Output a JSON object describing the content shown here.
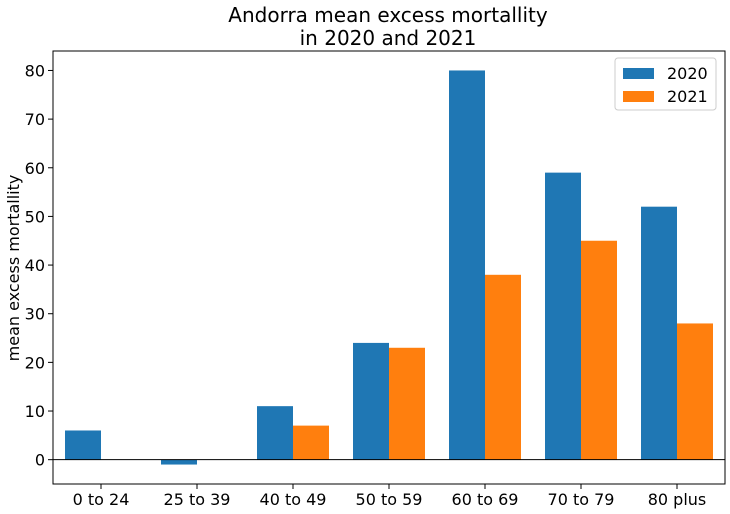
{
  "chart_data": {
    "type": "bar",
    "title_line1": "Andorra mean excess mortallity",
    "title_line2": "in 2020 and 2021",
    "xlabel": "",
    "ylabel": "mean excess mortallity",
    "categories": [
      "0 to 24",
      "25 to 39",
      "40 to 49",
      "50 to 59",
      "60 to 69",
      "70 to 79",
      "80 plus"
    ],
    "series": [
      {
        "name": "2020",
        "color": "#1f77b4",
        "values": [
          6,
          -1,
          11,
          24,
          80,
          59,
          52
        ]
      },
      {
        "name": "2021",
        "color": "#ff7f0e",
        "values": [
          0,
          0,
          7,
          23,
          38,
          45,
          28
        ]
      }
    ],
    "yticks": [
      0,
      10,
      20,
      30,
      40,
      50,
      60,
      70,
      80
    ],
    "ylim": [
      -5,
      84
    ],
    "legend_position": "top-right",
    "grid": false,
    "zero_line": true
  }
}
